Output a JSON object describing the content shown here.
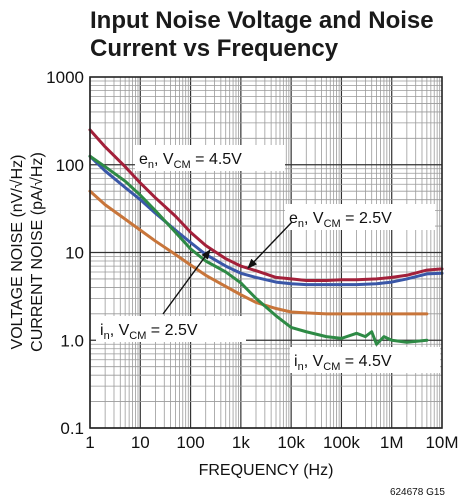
{
  "chart_data": {
    "type": "line",
    "title": "Input Noise Voltage and Noise Current vs Frequency",
    "title_lines": [
      "Input Noise Voltage and Noise",
      "Current vs Frequency"
    ],
    "xlabel": "FREQUENCY (Hz)",
    "ylabel": "VOLTAGE NOISE (nV/√Hz) CURRENT NOISE (pA/√Hz)",
    "ylabel_lines": [
      "VOLTAGE NOISE (nV/√Hz)",
      "CURRENT NOISE (pA/√Hz)"
    ],
    "x_scale": "log",
    "y_scale": "log",
    "xlim": [
      1,
      10000000
    ],
    "ylim": [
      0.1,
      1000
    ],
    "x_ticks": [
      1,
      10,
      100,
      1000,
      10000,
      100000,
      1000000,
      10000000
    ],
    "x_tick_labels": [
      "1",
      "10",
      "100",
      "1k",
      "10k",
      "100k",
      "1M",
      "10M"
    ],
    "y_ticks": [
      0.1,
      1,
      10,
      100,
      1000
    ],
    "y_tick_labels": [
      "0.1",
      "1.0",
      "10",
      "100",
      "1000"
    ],
    "grid": true,
    "figure_id": "624678 G15",
    "series": [
      {
        "name": "eₙ, V_CM = 4.5V",
        "label_main": "e",
        "label_sub": "n",
        "label_mid": ", V",
        "label_sub2": "CM",
        "label_end": " = 4.5V",
        "color": "#a3203a",
        "x": [
          1,
          2,
          5,
          10,
          20,
          50,
          100,
          200,
          500,
          1000,
          2000,
          5000,
          10000,
          20000,
          50000,
          100000,
          200000,
          500000,
          1000000,
          2000000,
          5000000,
          10000000
        ],
        "y": [
          250,
          160,
          95,
          62,
          42,
          26,
          17,
          12,
          8.5,
          7,
          6.2,
          5.2,
          5,
          4.8,
          4.8,
          4.9,
          4.9,
          5,
          5.2,
          5.5,
          6.3,
          6.5
        ]
      },
      {
        "name": "eₙ, V_CM = 2.5V",
        "label_main": "e",
        "label_sub": "n",
        "label_mid": ", V",
        "label_sub2": "CM",
        "label_end": " = 2.5V",
        "color": "#3a57a8",
        "x": [
          1,
          2,
          5,
          10,
          20,
          50,
          100,
          200,
          500,
          1000,
          2000,
          5000,
          10000,
          20000,
          50000,
          100000,
          200000,
          500000,
          1000000,
          2000000,
          5000000,
          10000000
        ],
        "y": [
          125,
          85,
          55,
          40,
          28,
          18,
          13,
          9.5,
          7,
          5.8,
          5.2,
          4.6,
          4.4,
          4.3,
          4.3,
          4.3,
          4.3,
          4.4,
          4.6,
          5,
          5.7,
          5.8
        ]
      },
      {
        "name": "iₙ, V_CM = 2.5V",
        "label_main": "i",
        "label_sub": "n",
        "label_mid": ", V",
        "label_sub2": "CM",
        "label_end": " = 2.5V",
        "color": "#c8753a",
        "x": [
          1,
          2,
          5,
          10,
          20,
          50,
          100,
          200,
          500,
          1000,
          2000,
          5000,
          10000,
          20000,
          50000,
          100000,
          200000,
          500000,
          1000000,
          2000000,
          5000000
        ],
        "y": [
          50,
          35,
          24,
          18,
          13.5,
          9.5,
          7.2,
          5.5,
          4.1,
          3.3,
          2.7,
          2.3,
          2.1,
          2.05,
          2,
          2,
          2,
          2,
          2,
          2,
          2
        ]
      },
      {
        "name": "iₙ, V_CM = 4.5V",
        "label_main": "i",
        "label_sub": "n",
        "label_mid": ", V",
        "label_sub2": "CM",
        "label_end": " = 4.5V",
        "color": "#2e8a45",
        "x": [
          1,
          2,
          5,
          10,
          20,
          50,
          100,
          200,
          500,
          1000,
          2000,
          5000,
          10000,
          20000,
          50000,
          100000,
          200000,
          300000,
          400000,
          500000,
          700000,
          1000000,
          2000000,
          5000000
        ],
        "y": [
          125,
          95,
          65,
          45,
          30,
          17,
          11,
          8,
          6,
          4.5,
          3,
          1.9,
          1.4,
          1.25,
          1.1,
          1.05,
          1.2,
          1.1,
          1.25,
          0.9,
          1.1,
          1.0,
          0.95,
          1.0
        ]
      }
    ]
  }
}
